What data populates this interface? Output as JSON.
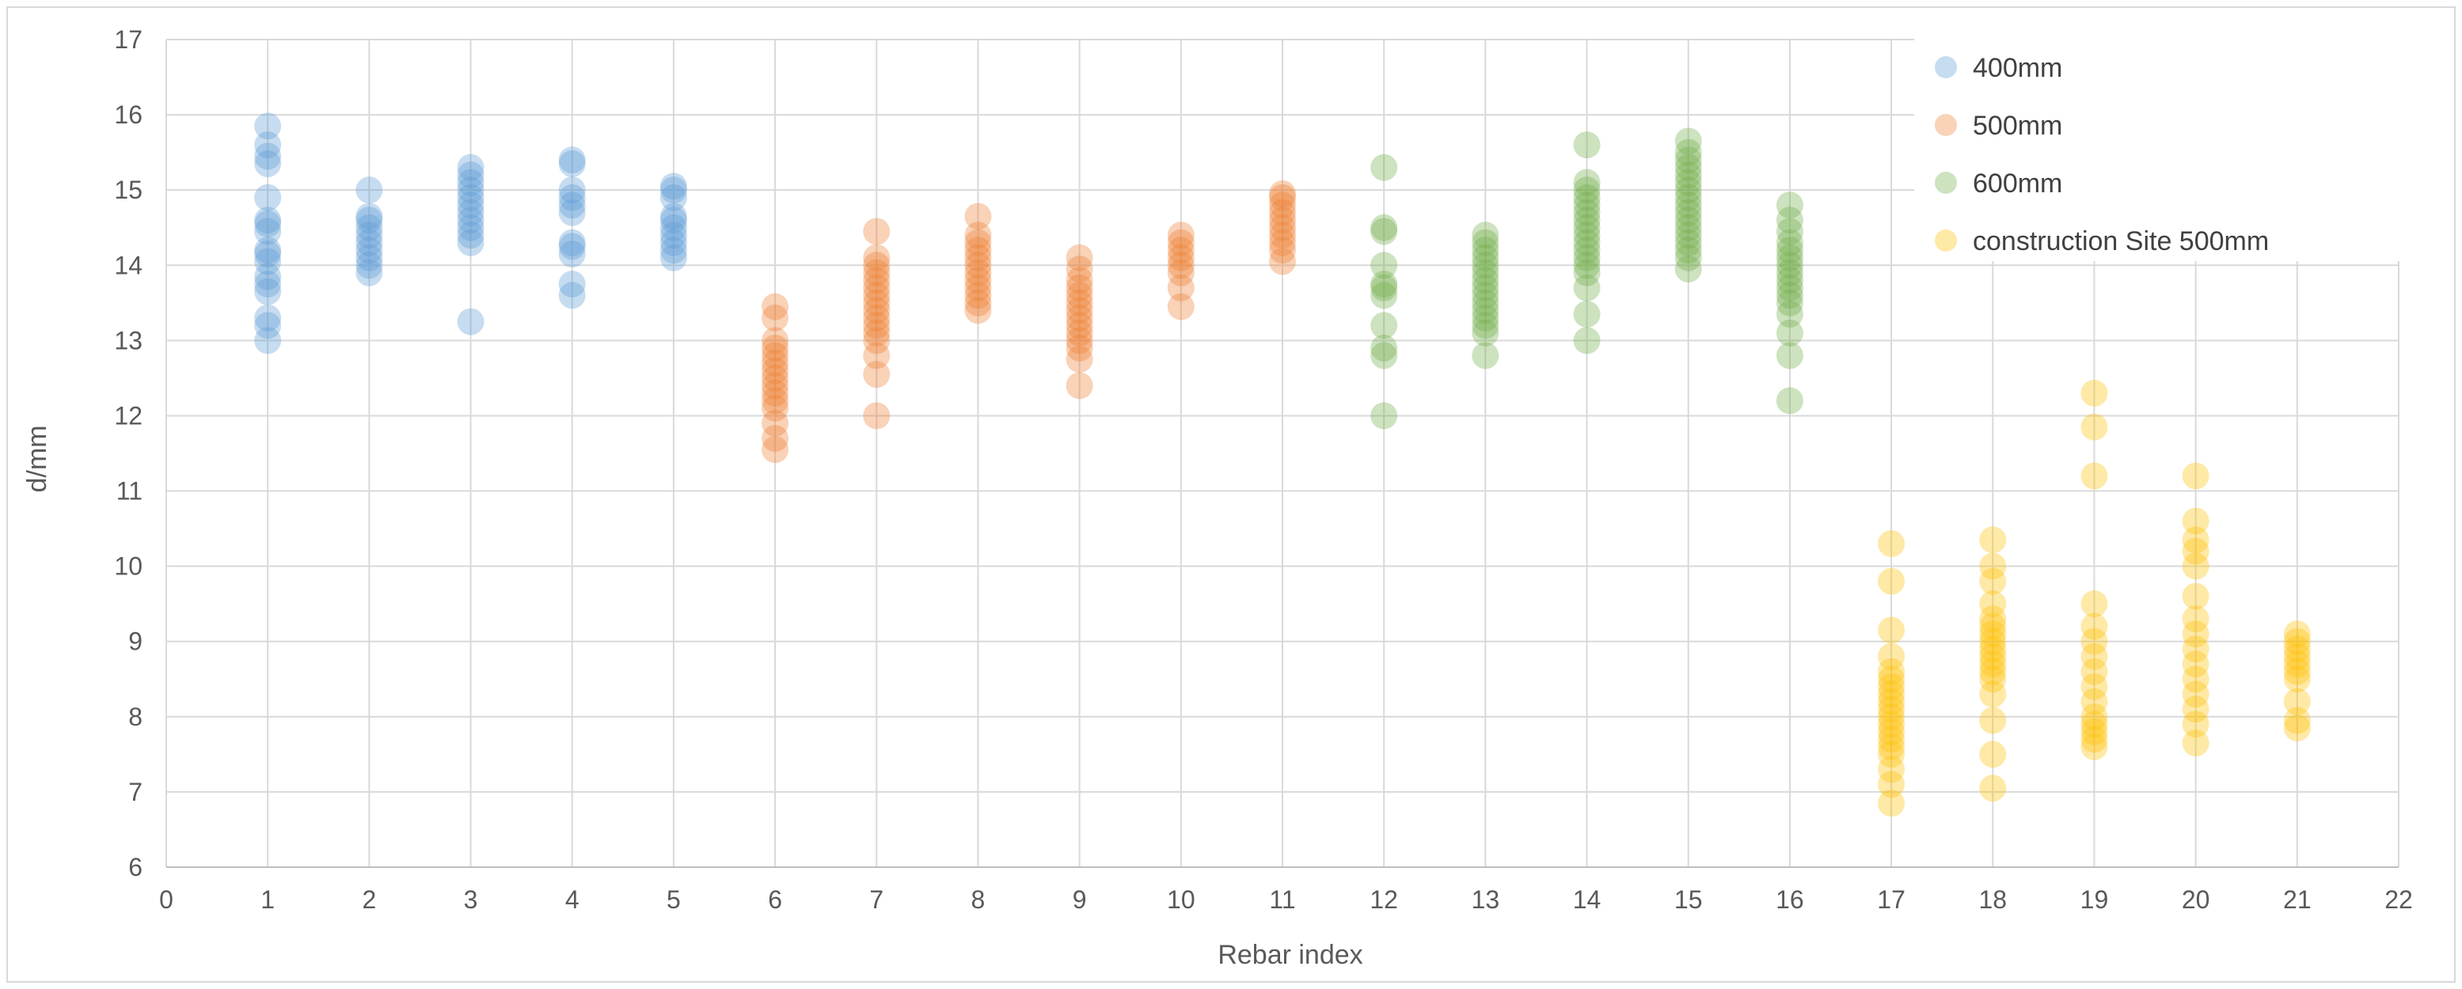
{
  "chart_data": {
    "type": "scatter",
    "title": "",
    "xlabel": "Rebar index",
    "ylabel": "d/mm",
    "xlim": [
      0,
      22
    ],
    "ylim": [
      6,
      17
    ],
    "xticks": [
      0,
      1,
      2,
      3,
      4,
      5,
      6,
      7,
      8,
      9,
      10,
      11,
      12,
      13,
      14,
      15,
      16,
      17,
      18,
      19,
      20,
      21,
      22
    ],
    "yticks": [
      6,
      7,
      8,
      9,
      10,
      11,
      12,
      13,
      14,
      15,
      16,
      17
    ],
    "grid": "vertical and horizontal major gridlines",
    "legend": "top-right",
    "series": [
      {
        "name": "400mm",
        "color": "#5b9bd5",
        "points": [
          [
            1,
            13.0
          ],
          [
            1,
            13.2
          ],
          [
            1,
            13.3
          ],
          [
            1,
            13.65
          ],
          [
            1,
            13.75
          ],
          [
            1,
            13.85
          ],
          [
            1,
            14.05
          ],
          [
            1,
            14.15
          ],
          [
            1,
            14.2
          ],
          [
            1,
            14.45
          ],
          [
            1,
            14.55
          ],
          [
            1,
            14.6
          ],
          [
            1,
            14.9
          ],
          [
            1,
            15.35
          ],
          [
            1,
            15.45
          ],
          [
            1,
            15.6
          ],
          [
            1,
            15.85
          ],
          [
            2,
            13.9
          ],
          [
            2,
            14.0
          ],
          [
            2,
            14.1
          ],
          [
            2,
            14.2
          ],
          [
            2,
            14.3
          ],
          [
            2,
            14.4
          ],
          [
            2,
            14.5
          ],
          [
            2,
            14.6
          ],
          [
            2,
            14.65
          ],
          [
            2,
            15.0
          ],
          [
            3,
            13.25
          ],
          [
            3,
            14.3
          ],
          [
            3,
            14.4
          ],
          [
            3,
            14.5
          ],
          [
            3,
            14.6
          ],
          [
            3,
            14.7
          ],
          [
            3,
            14.8
          ],
          [
            3,
            14.9
          ],
          [
            3,
            15.0
          ],
          [
            3,
            15.1
          ],
          [
            3,
            15.2
          ],
          [
            3,
            15.3
          ],
          [
            4,
            13.6
          ],
          [
            4,
            13.75
          ],
          [
            4,
            14.15
          ],
          [
            4,
            14.25
          ],
          [
            4,
            14.3
          ],
          [
            4,
            14.7
          ],
          [
            4,
            14.8
          ],
          [
            4,
            14.9
          ],
          [
            4,
            15.0
          ],
          [
            4,
            15.35
          ],
          [
            4,
            15.4
          ],
          [
            5,
            14.1
          ],
          [
            5,
            14.2
          ],
          [
            5,
            14.3
          ],
          [
            5,
            14.4
          ],
          [
            5,
            14.5
          ],
          [
            5,
            14.6
          ],
          [
            5,
            14.65
          ],
          [
            5,
            14.9
          ],
          [
            5,
            15.0
          ],
          [
            5,
            15.05
          ]
        ]
      },
      {
        "name": "500mm",
        "color": "#ed7d31",
        "points": [
          [
            6,
            11.55
          ],
          [
            6,
            11.7
          ],
          [
            6,
            11.9
          ],
          [
            6,
            12.1
          ],
          [
            6,
            12.2
          ],
          [
            6,
            12.3
          ],
          [
            6,
            12.4
          ],
          [
            6,
            12.5
          ],
          [
            6,
            12.6
          ],
          [
            6,
            12.7
          ],
          [
            6,
            12.8
          ],
          [
            6,
            12.9
          ],
          [
            6,
            13.0
          ],
          [
            6,
            13.3
          ],
          [
            6,
            13.45
          ],
          [
            7,
            12.0
          ],
          [
            7,
            12.55
          ],
          [
            7,
            12.8
          ],
          [
            7,
            13.0
          ],
          [
            7,
            13.1
          ],
          [
            7,
            13.2
          ],
          [
            7,
            13.3
          ],
          [
            7,
            13.4
          ],
          [
            7,
            13.5
          ],
          [
            7,
            13.6
          ],
          [
            7,
            13.7
          ],
          [
            7,
            13.8
          ],
          [
            7,
            13.9
          ],
          [
            7,
            14.0
          ],
          [
            7,
            14.1
          ],
          [
            7,
            14.45
          ],
          [
            8,
            13.4
          ],
          [
            8,
            13.5
          ],
          [
            8,
            13.6
          ],
          [
            8,
            13.7
          ],
          [
            8,
            13.8
          ],
          [
            8,
            13.9
          ],
          [
            8,
            14.0
          ],
          [
            8,
            14.1
          ],
          [
            8,
            14.2
          ],
          [
            8,
            14.3
          ],
          [
            8,
            14.4
          ],
          [
            8,
            14.65
          ],
          [
            9,
            12.4
          ],
          [
            9,
            12.75
          ],
          [
            9,
            12.9
          ],
          [
            9,
            13.0
          ],
          [
            9,
            13.1
          ],
          [
            9,
            13.2
          ],
          [
            9,
            13.3
          ],
          [
            9,
            13.4
          ],
          [
            9,
            13.5
          ],
          [
            9,
            13.6
          ],
          [
            9,
            13.7
          ],
          [
            9,
            13.8
          ],
          [
            9,
            13.95
          ],
          [
            9,
            14.1
          ],
          [
            10,
            13.45
          ],
          [
            10,
            13.7
          ],
          [
            10,
            13.9
          ],
          [
            10,
            14.0
          ],
          [
            10,
            14.1
          ],
          [
            10,
            14.2
          ],
          [
            10,
            14.3
          ],
          [
            10,
            14.4
          ],
          [
            11,
            14.05
          ],
          [
            11,
            14.2
          ],
          [
            11,
            14.3
          ],
          [
            11,
            14.4
          ],
          [
            11,
            14.5
          ],
          [
            11,
            14.6
          ],
          [
            11,
            14.7
          ],
          [
            11,
            14.8
          ],
          [
            11,
            14.9
          ],
          [
            11,
            14.95
          ]
        ]
      },
      {
        "name": "600mm",
        "color": "#70ad47",
        "points": [
          [
            12,
            12.0
          ],
          [
            12,
            12.8
          ],
          [
            12,
            12.9
          ],
          [
            12,
            13.2
          ],
          [
            12,
            13.6
          ],
          [
            12,
            13.7
          ],
          [
            12,
            13.75
          ],
          [
            12,
            14.0
          ],
          [
            12,
            14.45
          ],
          [
            12,
            14.5
          ],
          [
            12,
            15.3
          ],
          [
            13,
            12.8
          ],
          [
            13,
            13.1
          ],
          [
            13,
            13.2
          ],
          [
            13,
            13.3
          ],
          [
            13,
            13.4
          ],
          [
            13,
            13.5
          ],
          [
            13,
            13.6
          ],
          [
            13,
            13.7
          ],
          [
            13,
            13.8
          ],
          [
            13,
            13.9
          ],
          [
            13,
            14.0
          ],
          [
            13,
            14.1
          ],
          [
            13,
            14.2
          ],
          [
            13,
            14.3
          ],
          [
            13,
            14.4
          ],
          [
            14,
            13.0
          ],
          [
            14,
            13.35
          ],
          [
            14,
            13.7
          ],
          [
            14,
            13.9
          ],
          [
            14,
            14.0
          ],
          [
            14,
            14.1
          ],
          [
            14,
            14.2
          ],
          [
            14,
            14.3
          ],
          [
            14,
            14.4
          ],
          [
            14,
            14.5
          ],
          [
            14,
            14.6
          ],
          [
            14,
            14.7
          ],
          [
            14,
            14.8
          ],
          [
            14,
            14.9
          ],
          [
            14,
            15.0
          ],
          [
            14,
            15.1
          ],
          [
            14,
            15.6
          ],
          [
            15,
            13.95
          ],
          [
            15,
            14.1
          ],
          [
            15,
            14.2
          ],
          [
            15,
            14.3
          ],
          [
            15,
            14.4
          ],
          [
            15,
            14.5
          ],
          [
            15,
            14.6
          ],
          [
            15,
            14.7
          ],
          [
            15,
            14.8
          ],
          [
            15,
            14.9
          ],
          [
            15,
            15.0
          ],
          [
            15,
            15.1
          ],
          [
            15,
            15.2
          ],
          [
            15,
            15.3
          ],
          [
            15,
            15.4
          ],
          [
            15,
            15.5
          ],
          [
            15,
            15.65
          ],
          [
            16,
            12.2
          ],
          [
            16,
            12.8
          ],
          [
            16,
            13.1
          ],
          [
            16,
            13.35
          ],
          [
            16,
            13.5
          ],
          [
            16,
            13.6
          ],
          [
            16,
            13.7
          ],
          [
            16,
            13.8
          ],
          [
            16,
            13.9
          ],
          [
            16,
            14.0
          ],
          [
            16,
            14.1
          ],
          [
            16,
            14.2
          ],
          [
            16,
            14.3
          ],
          [
            16,
            14.45
          ],
          [
            16,
            14.6
          ],
          [
            16,
            14.8
          ]
        ]
      },
      {
        "name": "construction Site 500mm",
        "color": "#ffc000",
        "points": [
          [
            17,
            6.85
          ],
          [
            17,
            7.1
          ],
          [
            17,
            7.3
          ],
          [
            17,
            7.5
          ],
          [
            17,
            7.6
          ],
          [
            17,
            7.7
          ],
          [
            17,
            7.8
          ],
          [
            17,
            7.9
          ],
          [
            17,
            8.0
          ],
          [
            17,
            8.1
          ],
          [
            17,
            8.2
          ],
          [
            17,
            8.3
          ],
          [
            17,
            8.4
          ],
          [
            17,
            8.5
          ],
          [
            17,
            8.6
          ],
          [
            17,
            8.8
          ],
          [
            17,
            9.15
          ],
          [
            17,
            9.8
          ],
          [
            17,
            10.3
          ],
          [
            18,
            7.05
          ],
          [
            18,
            7.5
          ],
          [
            18,
            7.95
          ],
          [
            18,
            8.3
          ],
          [
            18,
            8.5
          ],
          [
            18,
            8.6
          ],
          [
            18,
            8.7
          ],
          [
            18,
            8.8
          ],
          [
            18,
            8.9
          ],
          [
            18,
            9.0
          ],
          [
            18,
            9.1
          ],
          [
            18,
            9.2
          ],
          [
            18,
            9.3
          ],
          [
            18,
            9.5
          ],
          [
            18,
            9.8
          ],
          [
            18,
            10.0
          ],
          [
            18,
            10.35
          ],
          [
            19,
            7.6
          ],
          [
            19,
            7.7
          ],
          [
            19,
            7.8
          ],
          [
            19,
            7.9
          ],
          [
            19,
            8.0
          ],
          [
            19,
            8.2
          ],
          [
            19,
            8.4
          ],
          [
            19,
            8.6
          ],
          [
            19,
            8.8
          ],
          [
            19,
            9.0
          ],
          [
            19,
            9.2
          ],
          [
            19,
            9.5
          ],
          [
            19,
            11.2
          ],
          [
            19,
            11.85
          ],
          [
            19,
            12.3
          ],
          [
            20,
            7.65
          ],
          [
            20,
            7.9
          ],
          [
            20,
            8.1
          ],
          [
            20,
            8.3
          ],
          [
            20,
            8.5
          ],
          [
            20,
            8.7
          ],
          [
            20,
            8.9
          ],
          [
            20,
            9.1
          ],
          [
            20,
            9.3
          ],
          [
            20,
            9.6
          ],
          [
            20,
            10.0
          ],
          [
            20,
            10.2
          ],
          [
            20,
            10.35
          ],
          [
            20,
            10.6
          ],
          [
            20,
            11.2
          ],
          [
            21,
            7.85
          ],
          [
            21,
            7.95
          ],
          [
            21,
            8.2
          ],
          [
            21,
            8.5
          ],
          [
            21,
            8.6
          ],
          [
            21,
            8.7
          ],
          [
            21,
            8.8
          ],
          [
            21,
            8.9
          ],
          [
            21,
            9.0
          ],
          [
            21,
            9.1
          ]
        ]
      }
    ]
  }
}
